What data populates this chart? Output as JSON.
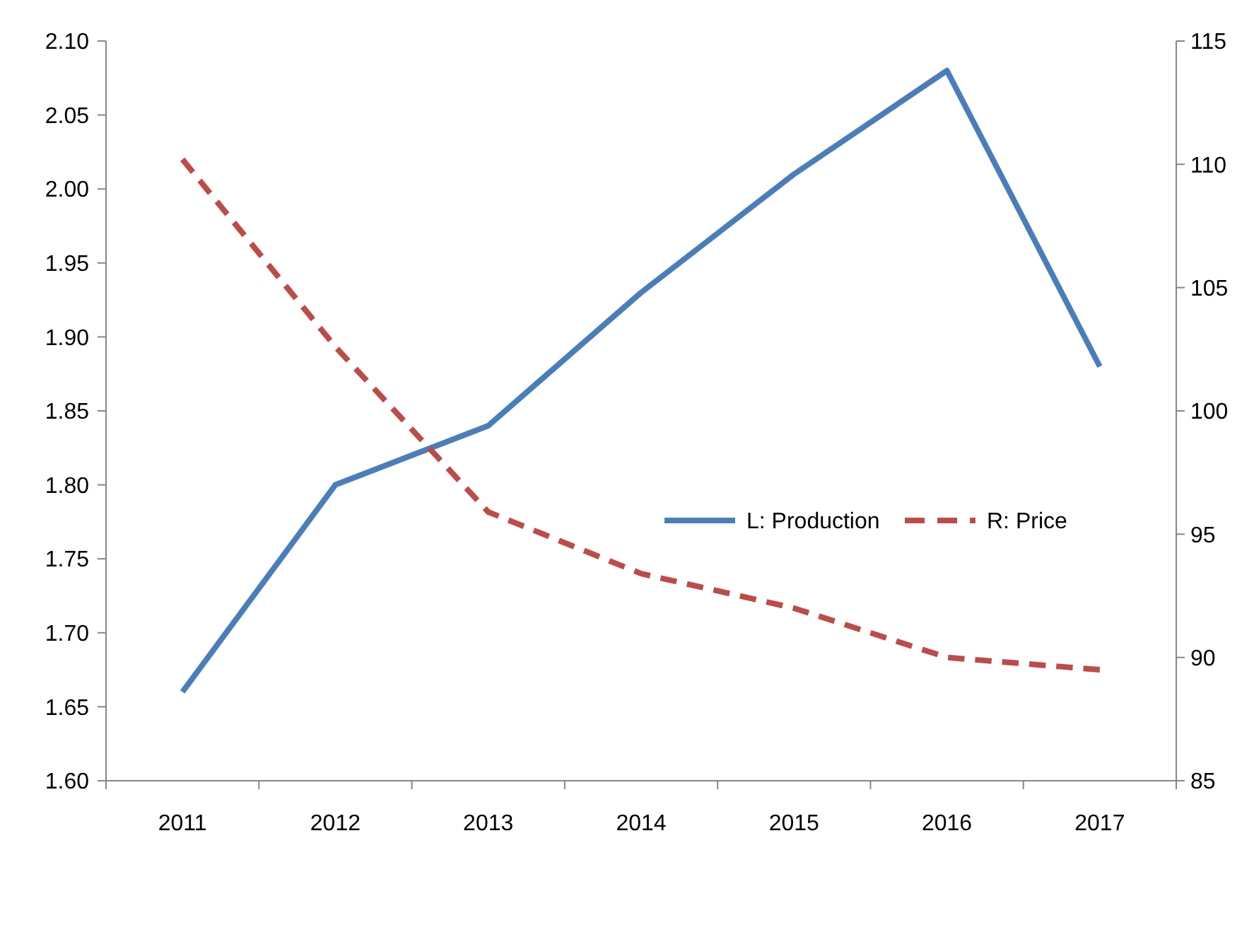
{
  "chart_data": {
    "type": "line",
    "categories": [
      "2011",
      "2012",
      "2013",
      "2014",
      "2015",
      "2016",
      "2017"
    ],
    "series": [
      {
        "name": "L: Production",
        "color": "#4a7ebb",
        "values": [
          1.66,
          1.8,
          1.84,
          1.93,
          2.01,
          2.08,
          1.88
        ],
        "line_style": "solid"
      },
      {
        "name": "R: Price",
        "color": "#be4b48",
        "values": [
          110.2,
          102.6,
          95.9,
          93.4,
          92.0,
          90.0,
          89.5
        ],
        "axis": "y2",
        "line_style": "dashed"
      }
    ],
    "ylim": [
      1.6,
      2.1
    ],
    "yticks": [
      {
        "value": 1.6,
        "label": "1.60"
      },
      {
        "value": 1.65,
        "label": "1.65"
      },
      {
        "value": 1.7,
        "label": "1.70"
      },
      {
        "value": 1.75,
        "label": "1.75"
      },
      {
        "value": 1.8,
        "label": "1.80"
      },
      {
        "value": 1.85,
        "label": "1.85"
      },
      {
        "value": 1.9,
        "label": "1.90"
      },
      {
        "value": 1.95,
        "label": "1.95"
      },
      {
        "value": 2.0,
        "label": "2.00"
      },
      {
        "value": 2.05,
        "label": "2.05"
      },
      {
        "value": 2.1,
        "label": "2.10"
      }
    ],
    "y2lim": [
      85,
      115
    ],
    "y2ticks": [
      85,
      90,
      95,
      100,
      105,
      110,
      115
    ],
    "legend": "right",
    "grid": false,
    "marker": "none"
  }
}
